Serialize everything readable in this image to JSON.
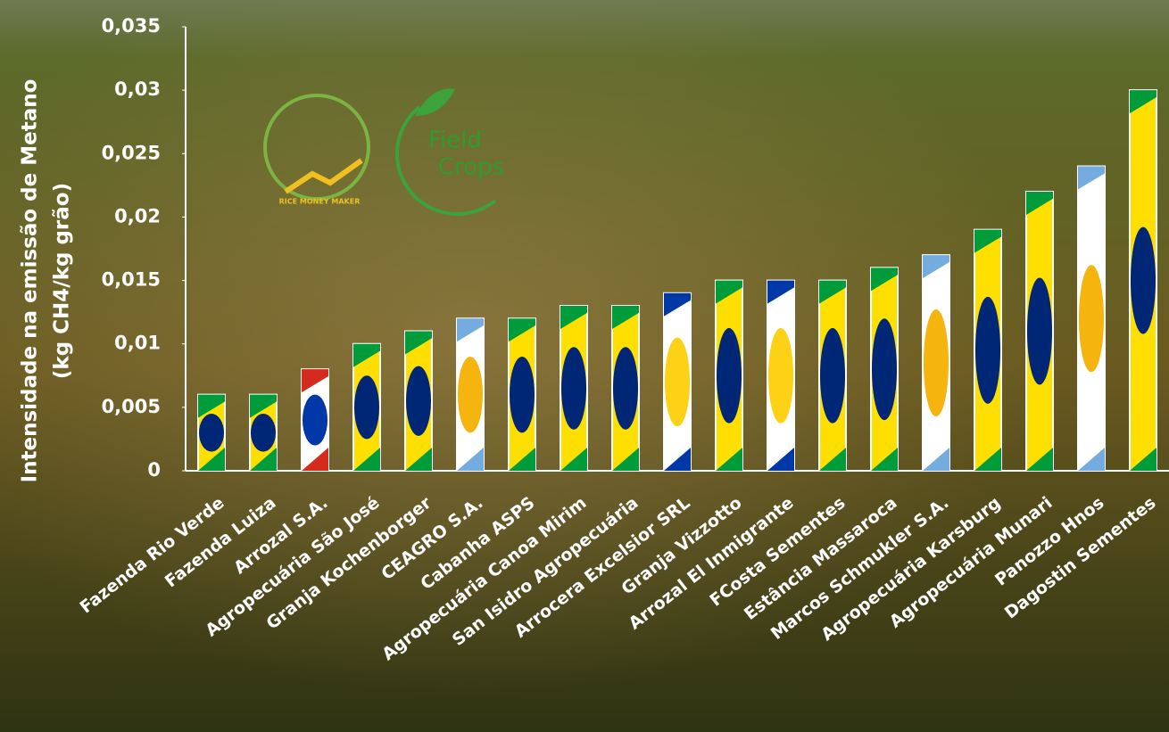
{
  "chart_data": {
    "type": "bar",
    "y_label_lines": [
      "Intensidade na emissão de Metano",
      "(kg CH4/kg grão)"
    ],
    "logos": {
      "rice": "RICE MONEY MAKER",
      "field": [
        "Field",
        "Crops"
      ]
    },
    "categories": [
      "Fazenda Rio Verde",
      "Fazenda Luiza",
      "Arrozal S.A.",
      "Agropecuária São José",
      "Granja Kochenborger",
      "CEAGRO S.A.",
      "Cabanha ASPS",
      "Agropecuária Canoa Mirim",
      "San Isidro Agropecuária",
      "Arrocera Excelsior SRL",
      "Granja Vizzotto",
      "Arrozal El Inmigrante",
      "FCosta Sementes",
      "Estância Massaroca",
      "Marcos Schmukler S.A.",
      "Agropecuária Karsburg",
      "Agropecuária Munari",
      "Panozzo Hnos",
      "Dagostin Sementes"
    ],
    "values": [
      0.006,
      0.006,
      0.008,
      0.01,
      0.011,
      0.012,
      0.012,
      0.013,
      0.013,
      0.014,
      0.015,
      0.015,
      0.015,
      0.016,
      0.017,
      0.019,
      0.022,
      0.024,
      0.03
    ],
    "bar_colors": [
      [
        "#009c3b",
        "#ffdf00",
        "#002776"
      ],
      [
        "#009c3b",
        "#ffdf00",
        "#002776"
      ],
      [
        "#d52b1e",
        "#ffffff",
        "#0038a8"
      ],
      [
        "#009c3b",
        "#ffdf00",
        "#002776"
      ],
      [
        "#009c3b",
        "#ffdf00",
        "#002776"
      ],
      [
        "#74acdf",
        "#ffffff",
        "#f6b40e"
      ],
      [
        "#009c3b",
        "#ffdf00",
        "#002776"
      ],
      [
        "#009c3b",
        "#ffdf00",
        "#002776"
      ],
      [
        "#009c3b",
        "#ffdf00",
        "#002776"
      ],
      [
        "#0038a8",
        "#ffffff",
        "#fcd116"
      ],
      [
        "#009c3b",
        "#ffdf00",
        "#002776"
      ],
      [
        "#0038a8",
        "#ffffff",
        "#fcd116"
      ],
      [
        "#009c3b",
        "#ffdf00",
        "#002776"
      ],
      [
        "#009c3b",
        "#ffdf00",
        "#002776"
      ],
      [
        "#74acdf",
        "#ffffff",
        "#f6b40e"
      ],
      [
        "#009c3b",
        "#ffdf00",
        "#002776"
      ],
      [
        "#009c3b",
        "#ffdf00",
        "#002776"
      ],
      [
        "#74acdf",
        "#ffffff",
        "#f6b40e"
      ],
      [
        "#009c3b",
        "#ffdf00",
        "#002776"
      ]
    ],
    "ylim": [
      0,
      0.035
    ],
    "yticks": [
      0,
      {
        "value": 0.005,
        "label": "0,005"
      },
      {
        "value": 0.01,
        "label": "0,01"
      },
      {
        "value": 0.015,
        "label": "0,015"
      },
      {
        "value": 0.02,
        "label": "0,02"
      },
      {
        "value": 0.025,
        "label": "0,025"
      },
      {
        "value": 0.03,
        "label": "0,03"
      },
      {
        "value": 0.035,
        "label": "0,035"
      }
    ]
  }
}
